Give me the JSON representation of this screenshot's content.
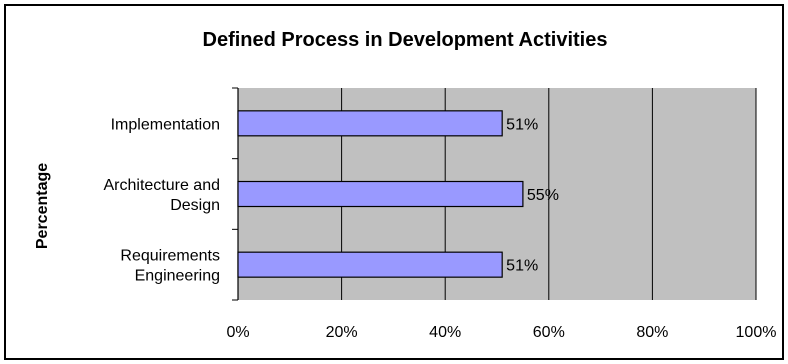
{
  "chart_data": {
    "type": "bar",
    "orientation": "horizontal",
    "title": "Defined Process in Development Activities",
    "ylabel": "Percentage",
    "xlabel": "",
    "categories": [
      [
        "Implementation"
      ],
      [
        "Architecture and",
        "Design"
      ],
      [
        "Requirements",
        "Engineering"
      ]
    ],
    "values": [
      51,
      55,
      51
    ],
    "value_labels": [
      "51%",
      "55%",
      "51%"
    ],
    "xlim": [
      0,
      100
    ],
    "x_ticks": [
      0,
      20,
      40,
      60,
      80,
      100
    ],
    "x_tick_labels": [
      "0%",
      "20%",
      "40%",
      "60%",
      "80%",
      "100%"
    ],
    "grid": "vertical",
    "legend": "none",
    "colors": {
      "bar_fill": "#9999ff",
      "bar_stroke": "#000000",
      "plot_background": "#c0c0c0",
      "gridline": "#000000",
      "text": "#000000",
      "page_background": "#ffffff"
    }
  }
}
